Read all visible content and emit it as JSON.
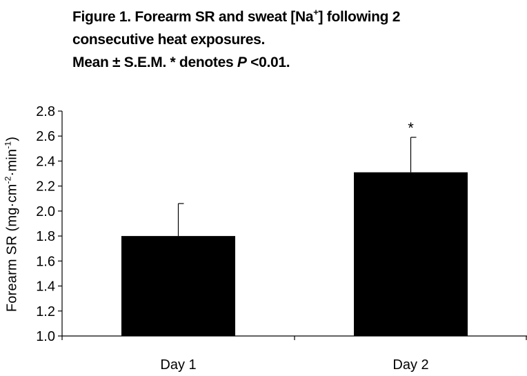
{
  "title": {
    "line1_a": "Figure 1. Forearm SR and sweat [Na",
    "line1_sup": "+",
    "line1_b": "] following 2",
    "line2": "consecutive heat exposures.",
    "line3_a": "Mean ± S.E.M. * denotes ",
    "line3_italic": "P",
    "line3_b": " <0.01."
  },
  "chart_data": {
    "type": "bar",
    "categories": [
      "Day 1",
      "Day 2"
    ],
    "values": [
      1.8,
      2.31
    ],
    "errors": [
      0.26,
      0.28
    ],
    "annotations": [
      "",
      "*"
    ],
    "ylabel": "Forearm SR (mg·cm⁻²·min⁻¹)",
    "ylabel_parts": {
      "a": "Forearm SR (mg·cm",
      "sup1": "-2",
      "b": "·min",
      "sup2": "-1",
      "c": ")"
    },
    "ylim": [
      1.0,
      2.8
    ],
    "yticks": [
      1.0,
      1.2,
      1.4,
      1.6,
      1.8,
      2.0,
      2.2,
      2.4,
      2.6,
      2.8
    ],
    "ytick_labels": [
      "1.0",
      "1.2",
      "1.4",
      "1.6",
      "1.8",
      "2.0",
      "2.2",
      "2.4",
      "2.6",
      "2.8"
    ],
    "grid": false,
    "bar_color": "#000000"
  }
}
